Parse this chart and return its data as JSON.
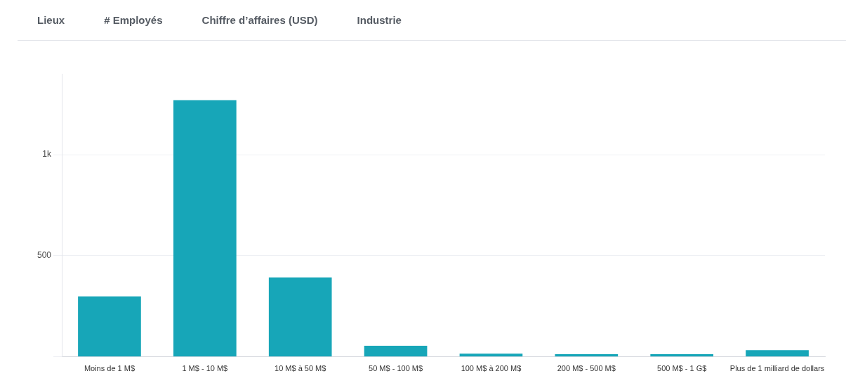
{
  "chart_data": {
    "type": "bar",
    "categories": [
      "Moins de 1 M$",
      "1 M$ - 10 M$",
      "10 M$ à 50 M$",
      "50 M$ - 100 M$",
      "100 M$ à 200 M$",
      "200 M$ - 500 M$",
      "500 M$ - 1 G$",
      "Plus de 1 milliard de dollars"
    ],
    "values": [
      299,
      1270,
      393,
      55,
      16,
      13,
      13,
      33
    ],
    "color": "#17a6b8",
    "ylim": [
      0,
      1400
    ],
    "yticks": [
      {
        "value": 0,
        "label": null
      },
      500,
      {
        "value": 1000,
        "label": "1k"
      }
    ],
    "grid": "y",
    "legend": false,
    "annotations": [
      "Lieux",
      "# Employés",
      "Chiffre d’affaires (USD)",
      "Industrie"
    ]
  }
}
